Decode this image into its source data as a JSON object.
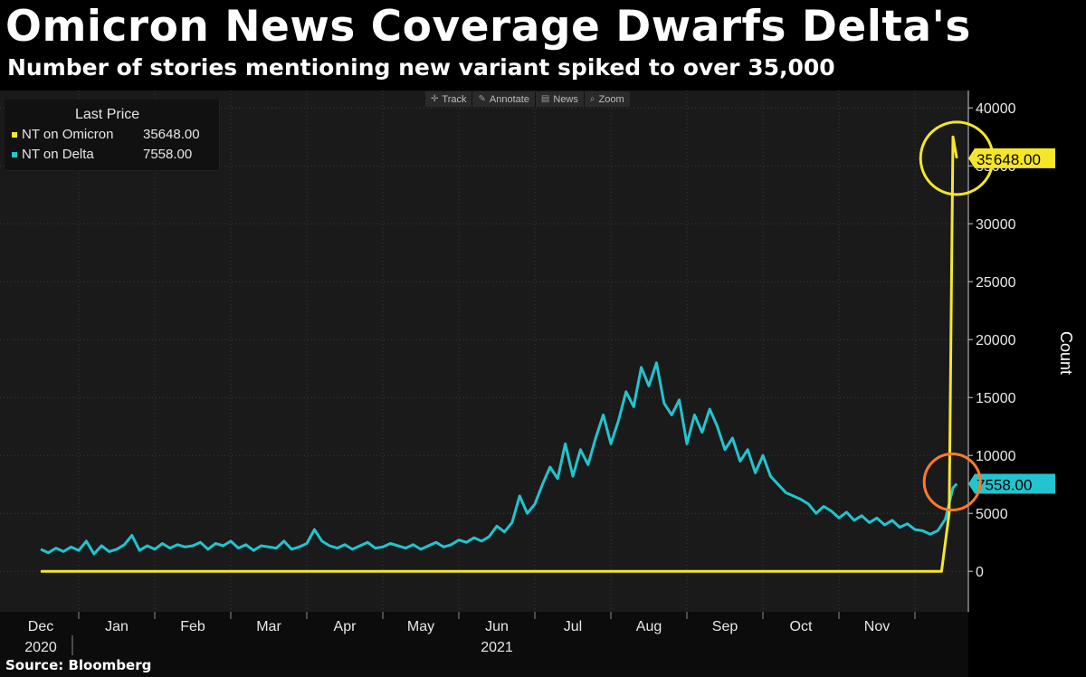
{
  "title": "Omicron News Coverage Dwarfs Delta's",
  "subtitle": "Number of stories mentioning new variant spiked to over 35,000",
  "source": "Source: Bloomberg",
  "toolbar": [
    {
      "label": "Track",
      "icon": "crosshair-icon",
      "glyph": "✛"
    },
    {
      "label": "Annotate",
      "icon": "pencil-icon",
      "glyph": "✎"
    },
    {
      "label": "News",
      "icon": "newspaper-icon",
      "glyph": "▤"
    },
    {
      "label": "Zoom",
      "icon": "magnifier-icon",
      "glyph": "⌕"
    }
  ],
  "legend": {
    "title": "Last Price",
    "items": [
      {
        "name": "NT on Omicron",
        "value": "35648.00",
        "color": "#f5e628"
      },
      {
        "name": "NT on Delta",
        "value": "7558.00",
        "color": "#22c4cf"
      }
    ]
  },
  "chart_data": {
    "type": "line",
    "title": "Omicron News Coverage Dwarfs Delta's",
    "ylabel": "Count",
    "ylim": [
      -3500,
      41500
    ],
    "yticks": [
      0,
      5000,
      10000,
      15000,
      20000,
      25000,
      30000,
      35000,
      40000
    ],
    "x_months": [
      {
        "label": "Dec",
        "year": "2020"
      },
      {
        "label": "Jan",
        "year": ""
      },
      {
        "label": "Feb",
        "year": ""
      },
      {
        "label": "Mar",
        "year": ""
      },
      {
        "label": "Apr",
        "year": ""
      },
      {
        "label": "May",
        "year": ""
      },
      {
        "label": "Jun",
        "year": "2021"
      },
      {
        "label": "Jul",
        "year": ""
      },
      {
        "label": "Aug",
        "year": ""
      },
      {
        "label": "Sep",
        "year": ""
      },
      {
        "label": "Oct",
        "year": ""
      },
      {
        "label": "Nov",
        "year": ""
      }
    ],
    "series": [
      {
        "name": "NT on Delta",
        "color": "#22c4cf",
        "last_value": "7558.00",
        "points": [
          [
            0.0,
            1900
          ],
          [
            0.1,
            1600
          ],
          [
            0.2,
            2000
          ],
          [
            0.3,
            1700
          ],
          [
            0.4,
            2100
          ],
          [
            0.5,
            1800
          ],
          [
            0.6,
            2600
          ],
          [
            0.7,
            1500
          ],
          [
            0.8,
            2200
          ],
          [
            0.9,
            1700
          ],
          [
            1.0,
            1900
          ],
          [
            1.1,
            2300
          ],
          [
            1.2,
            3100
          ],
          [
            1.3,
            1800
          ],
          [
            1.4,
            2200
          ],
          [
            1.5,
            1900
          ],
          [
            1.6,
            2400
          ],
          [
            1.7,
            2000
          ],
          [
            1.8,
            2300
          ],
          [
            1.9,
            2100
          ],
          [
            2.0,
            2200
          ],
          [
            2.1,
            2500
          ],
          [
            2.2,
            1900
          ],
          [
            2.3,
            2400
          ],
          [
            2.4,
            2200
          ],
          [
            2.5,
            2600
          ],
          [
            2.6,
            2000
          ],
          [
            2.7,
            2300
          ],
          [
            2.8,
            1800
          ],
          [
            2.9,
            2200
          ],
          [
            3.0,
            2100
          ],
          [
            3.1,
            2000
          ],
          [
            3.2,
            2600
          ],
          [
            3.3,
            1900
          ],
          [
            3.4,
            2100
          ],
          [
            3.5,
            2400
          ],
          [
            3.6,
            3600
          ],
          [
            3.7,
            2600
          ],
          [
            3.8,
            2200
          ],
          [
            3.9,
            2000
          ],
          [
            4.0,
            2300
          ],
          [
            4.1,
            1900
          ],
          [
            4.2,
            2200
          ],
          [
            4.3,
            2500
          ],
          [
            4.4,
            2000
          ],
          [
            4.5,
            2100
          ],
          [
            4.6,
            2400
          ],
          [
            4.7,
            2200
          ],
          [
            4.8,
            2000
          ],
          [
            4.9,
            2300
          ],
          [
            5.0,
            1900
          ],
          [
            5.1,
            2200
          ],
          [
            5.2,
            2500
          ],
          [
            5.3,
            2100
          ],
          [
            5.4,
            2300
          ],
          [
            5.5,
            2700
          ],
          [
            5.6,
            2500
          ],
          [
            5.7,
            2900
          ],
          [
            5.8,
            2600
          ],
          [
            5.9,
            3000
          ],
          [
            6.0,
            3900
          ],
          [
            6.1,
            3400
          ],
          [
            6.2,
            4200
          ],
          [
            6.3,
            6500
          ],
          [
            6.4,
            5000
          ],
          [
            6.5,
            5800
          ],
          [
            6.6,
            7500
          ],
          [
            6.7,
            9000
          ],
          [
            6.8,
            8000
          ],
          [
            6.9,
            11000
          ],
          [
            7.0,
            8200
          ],
          [
            7.1,
            10500
          ],
          [
            7.2,
            9200
          ],
          [
            7.3,
            11500
          ],
          [
            7.4,
            13500
          ],
          [
            7.5,
            11000
          ],
          [
            7.6,
            13000
          ],
          [
            7.7,
            15500
          ],
          [
            7.8,
            14200
          ],
          [
            7.9,
            17600
          ],
          [
            8.0,
            16000
          ],
          [
            8.1,
            18000
          ],
          [
            8.2,
            14500
          ],
          [
            8.3,
            13500
          ],
          [
            8.4,
            14800
          ],
          [
            8.5,
            11000
          ],
          [
            8.6,
            13500
          ],
          [
            8.7,
            12000
          ],
          [
            8.8,
            14000
          ],
          [
            8.9,
            12500
          ],
          [
            9.0,
            10500
          ],
          [
            9.1,
            11500
          ],
          [
            9.2,
            9500
          ],
          [
            9.3,
            10500
          ],
          [
            9.4,
            8500
          ],
          [
            9.5,
            10000
          ],
          [
            9.6,
            8200
          ],
          [
            9.7,
            7500
          ],
          [
            9.8,
            6800
          ],
          [
            9.9,
            6500
          ],
          [
            10.0,
            6200
          ],
          [
            10.1,
            5800
          ],
          [
            10.2,
            5000
          ],
          [
            10.3,
            5600
          ],
          [
            10.4,
            5200
          ],
          [
            10.5,
            4600
          ],
          [
            10.6,
            5100
          ],
          [
            10.7,
            4400
          ],
          [
            10.8,
            4800
          ],
          [
            10.9,
            4200
          ],
          [
            11.0,
            4600
          ],
          [
            11.1,
            4000
          ],
          [
            11.2,
            4400
          ],
          [
            11.3,
            3800
          ],
          [
            11.4,
            4100
          ],
          [
            11.5,
            3600
          ],
          [
            11.6,
            3500
          ],
          [
            11.7,
            3200
          ],
          [
            11.8,
            3500
          ],
          [
            11.9,
            4500
          ],
          [
            12.0,
            7200
          ],
          [
            12.05,
            7558
          ]
        ]
      },
      {
        "name": "NT on Omicron",
        "color": "#f5e628",
        "last_value": "35648.00",
        "points": [
          [
            0.0,
            0
          ],
          [
            11.85,
            0
          ],
          [
            11.95,
            5000
          ],
          [
            12.0,
            37500
          ],
          [
            12.05,
            35648
          ]
        ]
      }
    ]
  }
}
